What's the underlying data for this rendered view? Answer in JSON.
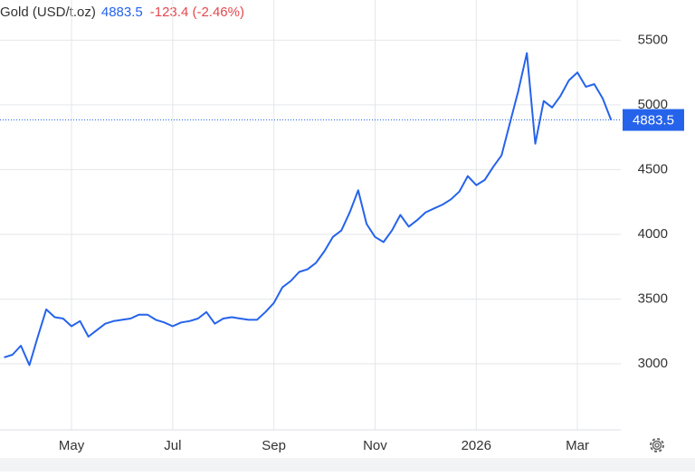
{
  "chart_data": {
    "type": "line",
    "title": "Gold (USD/t.oz)",
    "last_price": 4883.5,
    "change": "-123.4 (-2.46%)",
    "color": "#2563eb",
    "grid": true,
    "categories": [
      null,
      null,
      null,
      null,
      null,
      null,
      null,
      null,
      "May",
      null,
      null,
      null,
      null,
      null,
      null,
      null,
      null,
      null,
      null,
      null,
      "Jul",
      null,
      null,
      null,
      null,
      null,
      null,
      null,
      null,
      null,
      null,
      null,
      "Sep",
      null,
      null,
      null,
      null,
      null,
      null,
      null,
      null,
      null,
      null,
      null,
      "Nov",
      null,
      null,
      null,
      null,
      null,
      null,
      null,
      null,
      null,
      null,
      null,
      "2026",
      null,
      null,
      null,
      null,
      null,
      null,
      null,
      null,
      null,
      null,
      null,
      "Mar",
      null,
      null,
      null,
      null
    ],
    "values": [
      3050,
      3070,
      3140,
      2990,
      3210,
      3420,
      3360,
      3350,
      3290,
      3330,
      3210,
      3260,
      3310,
      3330,
      3340,
      3350,
      3380,
      3380,
      3340,
      3320,
      3290,
      3320,
      3330,
      3350,
      3400,
      3310,
      3350,
      3360,
      3350,
      3340,
      3340,
      3400,
      3470,
      3590,
      3640,
      3710,
      3730,
      3780,
      3870,
      3980,
      4030,
      4170,
      4340,
      4080,
      3980,
      3940,
      4030,
      4150,
      4060,
      4110,
      4170,
      4200,
      4230,
      4270,
      4330,
      4450,
      4380,
      4420,
      4520,
      4610,
      4860,
      5110,
      5400,
      4700,
      5030,
      4980,
      5070,
      5190,
      5250,
      5140,
      5160,
      5050,
      4883.5
    ],
    "ylim": [
      2490,
      5810
    ],
    "yticks": [
      3000,
      3500,
      4000,
      4500,
      5000,
      5500
    ]
  }
}
